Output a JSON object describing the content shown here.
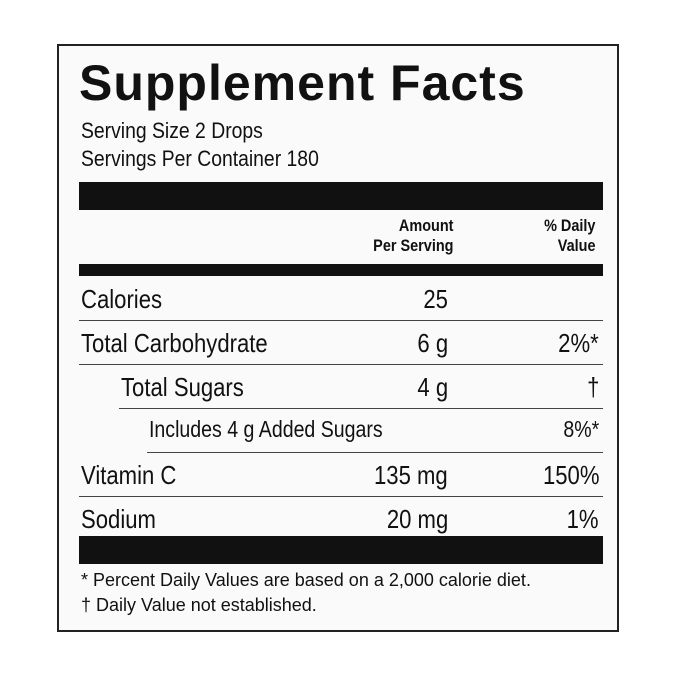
{
  "title": "Supplement Facts",
  "serving_size": "Serving Size 2 Drops",
  "servings_per_container": "Servings Per Container 180",
  "header": {
    "amount_line1": "Amount",
    "amount_line2": "Per Serving",
    "dv_line1": "% Daily",
    "dv_line2": "Value"
  },
  "rows": [
    {
      "label": "Calories",
      "amount": "25",
      "dv": ""
    },
    {
      "label": "Total Carbohydrate",
      "amount": "6 g",
      "dv": "2%*"
    },
    {
      "label": "Total Sugars",
      "amount": "4 g",
      "dv": "†"
    },
    {
      "label": "Includes 4 g Added Sugars",
      "amount": "",
      "dv": "8%*"
    },
    {
      "label": "Vitamin C",
      "amount": "135 mg",
      "dv": "150%"
    },
    {
      "label": "Sodium",
      "amount": "20 mg",
      "dv": "1%"
    }
  ],
  "footnotes": [
    "* Percent Daily Values are based on a 2,000 calorie diet.",
    "† Daily Value not established."
  ]
}
